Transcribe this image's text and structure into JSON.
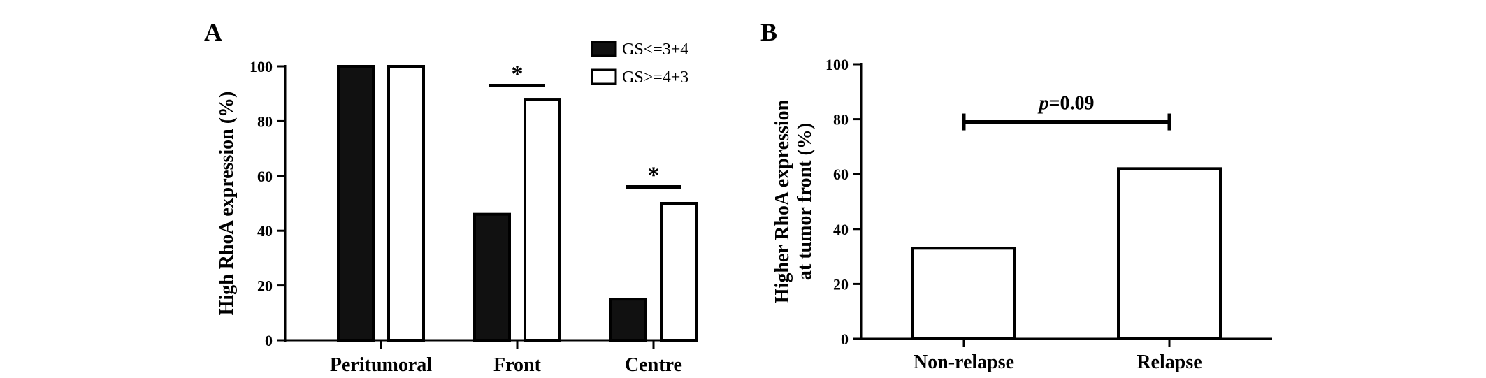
{
  "panels": {
    "a_letter": "A",
    "b_letter": "B"
  },
  "chart_data": [
    {
      "type": "bar",
      "ylabel": "High RhoA expression (%)",
      "ylim": [
        0,
        100
      ],
      "yticks": [
        "0",
        "20",
        "40",
        "60",
        "80",
        "100"
      ],
      "categories": [
        "Peritumoral",
        "Front",
        "Centre"
      ],
      "series": [
        {
          "name": "GS<=3+4",
          "values": [
            100,
            46,
            15
          ],
          "fill": "#111111"
        },
        {
          "name": "GS>=4+3",
          "values": [
            100,
            88,
            50
          ],
          "fill": "#ffffff"
        }
      ],
      "legend": "top-right",
      "annotations": [
        {
          "category": "Front",
          "text": "*",
          "y": 93
        },
        {
          "category": "Centre",
          "text": "*",
          "y": 56
        }
      ],
      "grid": false
    },
    {
      "type": "bar",
      "ylabel": "Higher RhoA expression at tumor front (%)",
      "ylabel_lines": [
        "Higher RhoA expression",
        "at tumor front (%)"
      ],
      "ylim": [
        0,
        100
      ],
      "yticks": [
        "0",
        "20",
        "40",
        "60",
        "80",
        "100"
      ],
      "categories": [
        "Non-relapse",
        "Relapse"
      ],
      "values": [
        33,
        62
      ],
      "fill": "#ffffff",
      "annotation": {
        "italic": "p",
        "text": "=0.09",
        "y": 79
      },
      "grid": false
    }
  ]
}
